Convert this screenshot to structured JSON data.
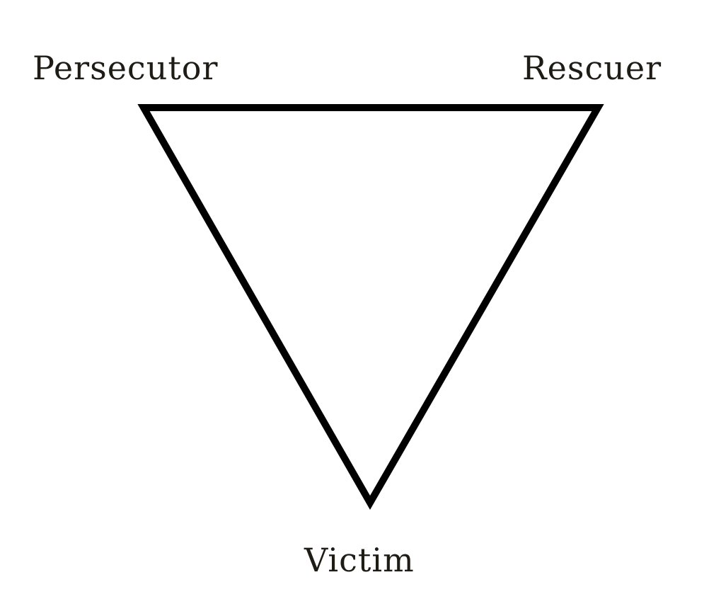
{
  "diagram": {
    "nodes": [
      {
        "id": "persecutor",
        "label": "Persecutor"
      },
      {
        "id": "rescuer",
        "label": "Rescuer"
      },
      {
        "id": "victim",
        "label": "Victim"
      }
    ],
    "edges": [
      {
        "from": "persecutor",
        "to": "rescuer"
      },
      {
        "from": "rescuer",
        "to": "victim"
      },
      {
        "from": "victim",
        "to": "persecutor"
      }
    ],
    "stroke_color": "#000000",
    "text_color": "#1f1c16",
    "background": "#ffffff"
  }
}
